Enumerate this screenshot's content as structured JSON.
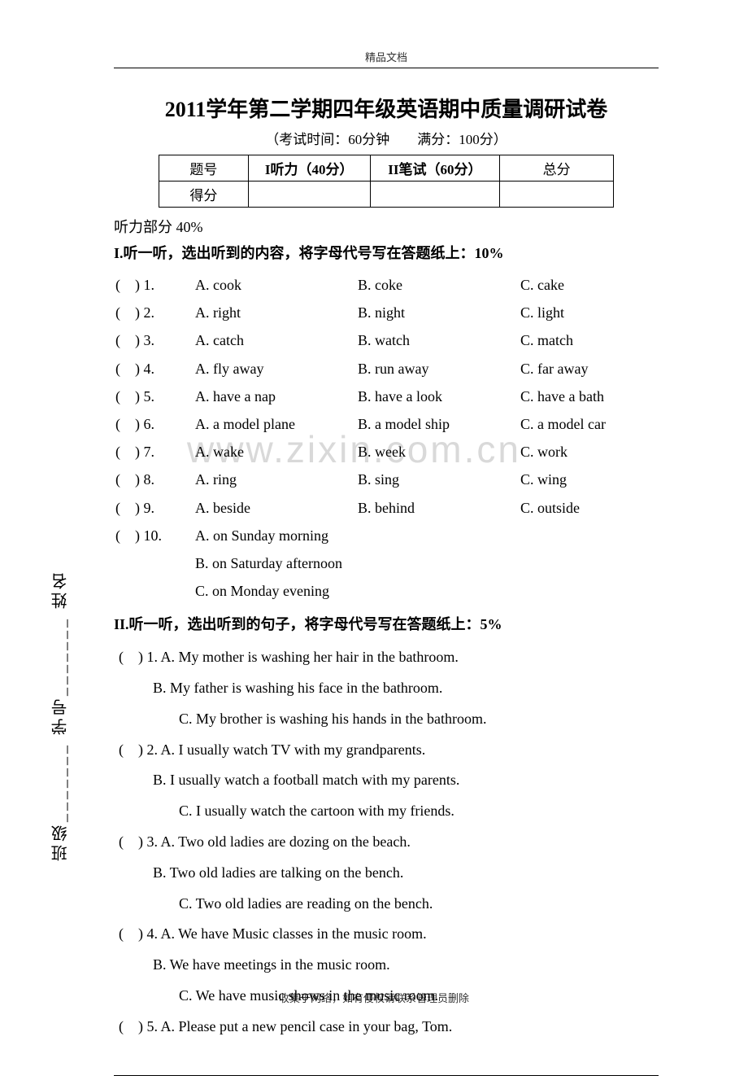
{
  "header_small": "精品文档",
  "title": "2011学年第二学期四年级英语期中质量调研试卷",
  "subtitle": "（考试时间：60分钟　　满分：100分）",
  "score_table": {
    "row1": [
      "题号",
      "I听力（40分）",
      "II笔试（60分）",
      "总分"
    ],
    "row2": [
      "得分",
      "",
      "",
      ""
    ]
  },
  "listening_header": "听力部分 40%",
  "section1_title_prefix": "I.",
  "section1_title": "听一听，选出听到的内容，将字母代号写在答题纸上：10%",
  "section1": [
    {
      "num": "(　) 1.",
      "a": "A. cook",
      "b": "B. coke",
      "c": "C. cake"
    },
    {
      "num": "(　) 2.",
      "a": "A. right",
      "b": "B. night",
      "c": "C. light"
    },
    {
      "num": "(　) 3.",
      "a": "A. catch",
      "b": "B. watch",
      "c": "C. match"
    },
    {
      "num": "(　) 4.",
      "a": "A. fly away",
      "b": "B. run away",
      "c": "C. far away"
    },
    {
      "num": "(　) 5.",
      "a": "A. have a nap",
      "b": "B. have a look",
      "c": "C. have a bath"
    },
    {
      "num": "(　) 6.",
      "a": "A. a model plane",
      "b": "B. a model ship",
      "c": "C. a model car"
    },
    {
      "num": "(　) 7.",
      "a": "A. wake",
      "b": "B. week",
      "c": "C. work"
    },
    {
      "num": "(　) 8.",
      "a": "A. ring",
      "b": "B. sing",
      "c": "C. wing"
    },
    {
      "num": "(　) 9.",
      "a": "A. beside",
      "b": "B. behind",
      "c": "C. outside"
    }
  ],
  "section1_q10": {
    "num": "(　) 10.",
    "a": "A. on Sunday morning",
    "b": "B. on Saturday afternoon",
    "c": "C. on Monday evening"
  },
  "section2_title_prefix": "II.",
  "section2_title": "听一听，选出听到的句子，将字母代号写在答题纸上：5%",
  "section2": [
    {
      "a": "(　) 1. A. My mother is washing her hair in the bathroom.",
      "b": "B. My father is washing his face in the bathroom.",
      "c": "C. My brother is washing his hands in the bathroom."
    },
    {
      "a": "(　) 2. A. I usually watch TV with my grandparents.",
      "b": "B. I usually watch a football match with my parents.",
      "c": "C. I usually watch the cartoon with my friends."
    },
    {
      "a": "(　) 3. A. Two old ladies are dozing on the beach.",
      "b": "B. Two old ladies are talking on the bench.",
      "c": "C. Two old ladies are reading on the bench."
    },
    {
      "a": "(　) 4. A. We have Music classes in the music room.",
      "b": "B. We have meetings in the music room.",
      "c": "C. We have music shows in the music room."
    },
    {
      "a": "(　) 5. A. Please put a new pencil case in your bag, Tom.",
      "b": "",
      "c": ""
    }
  ],
  "watermark": "www.zixin.com.cn",
  "vertical": {
    "class_label": "班级",
    "num_label": "学号",
    "name_label": "姓名"
  },
  "footer": "收集于网络，如有侵权请联系管理员删除"
}
